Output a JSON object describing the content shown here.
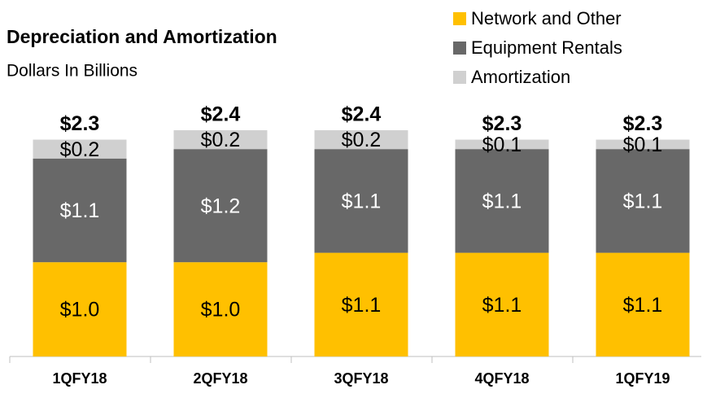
{
  "chart_data": {
    "type": "stacked_bar",
    "title": "Depreciation and Amortization",
    "subtitle": "Dollars In Billions",
    "categories": [
      "1QFY18",
      "2QFY18",
      "3QFY18",
      "4QFY18",
      "1QFY19"
    ],
    "series": [
      {
        "name": "Network and Other",
        "color": "#FFC000",
        "label_color": "#000000",
        "values": [
          1.0,
          1.0,
          1.1,
          1.1,
          1.1
        ],
        "value_labels": [
          "$1.0",
          "$1.0",
          "$1.1",
          "$1.1",
          "$1.1"
        ]
      },
      {
        "name": "Equipment Rentals",
        "color": "#686868",
        "label_color": "#FFFFFF",
        "values": [
          1.1,
          1.2,
          1.1,
          1.1,
          1.1
        ],
        "value_labels": [
          "$1.1",
          "$1.2",
          "$1.1",
          "$1.1",
          "$1.1"
        ]
      },
      {
        "name": "Amortization",
        "color": "#D0D0D0",
        "label_color": "#000000",
        "values": [
          0.2,
          0.2,
          0.2,
          0.1,
          0.1
        ],
        "value_labels": [
          "$0.2",
          "$0.2",
          "$0.2",
          "$0.1",
          "$0.1"
        ]
      }
    ],
    "totals": [
      2.3,
      2.4,
      2.4,
      2.3,
      2.3
    ],
    "total_labels": [
      "$2.3",
      "$2.4",
      "$2.4",
      "$2.3",
      "$2.3"
    ],
    "ylim": [
      0,
      2.4
    ],
    "legend": "top-right"
  }
}
